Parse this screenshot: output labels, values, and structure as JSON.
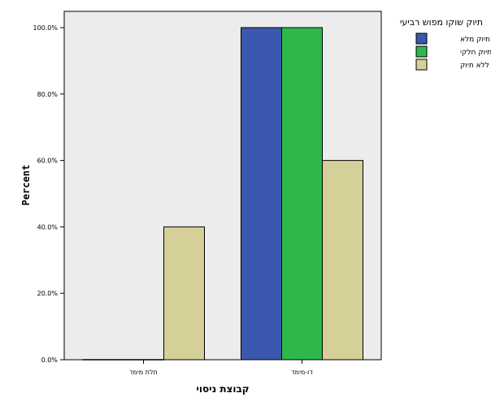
{
  "chart_data": {
    "type": "bar",
    "categories": [
      "תלת מימד",
      "דו-מימד"
    ],
    "series": [
      {
        "name": "תיוק מלא",
        "values": [
          0,
          100
        ],
        "color": "#3b58af"
      },
      {
        "name": "תיוק חלקי",
        "values": [
          0,
          100
        ],
        "color": "#2eb84a"
      },
      {
        "name": "ללא תיוק",
        "values": [
          40,
          60
        ],
        "color": "#d5cf98"
      }
    ],
    "ylim": [
      0,
      100
    ],
    "yticks": [
      0,
      20,
      40,
      60,
      80,
      100
    ],
    "ytick_labels": [
      "0.0%",
      "20.0%",
      "40.0%",
      "60.0%",
      "80.0%",
      "100.0%"
    ],
    "ylabel": "Percent",
    "xlabel": "קבוצת ניסוי",
    "legend_title": "תיוק שוקו מפוש רביעי",
    "legend_position": "right",
    "plot_background": "#ececec",
    "grid": false
  }
}
